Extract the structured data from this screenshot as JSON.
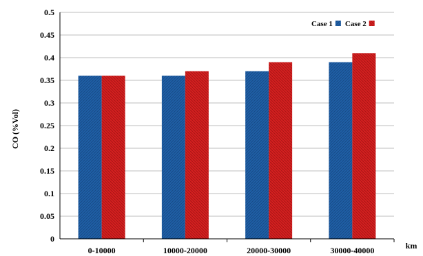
{
  "chart_data": {
    "type": "bar",
    "categories": [
      "0-10000",
      "10000-20000",
      "20000-30000",
      "30000-40000"
    ],
    "series": [
      {
        "name": "Case 1",
        "values": [
          0.36,
          0.36,
          0.37,
          0.39
        ],
        "color": "#1f5fa6"
      },
      {
        "name": "Case 2",
        "values": [
          0.36,
          0.37,
          0.39,
          0.41
        ],
        "color": "#d42020"
      }
    ],
    "title": "",
    "xlabel": "km",
    "ylabel": "CO (%Vol)",
    "ylim": [
      0,
      0.5
    ],
    "yticks": [
      "0",
      "0.05",
      "0.1",
      "0.15",
      "0.2",
      "0.25",
      "0.3",
      "0.35",
      "0.4",
      "0.45",
      "0.5"
    ],
    "grid": "horizontal",
    "legend_position": "top-right"
  }
}
